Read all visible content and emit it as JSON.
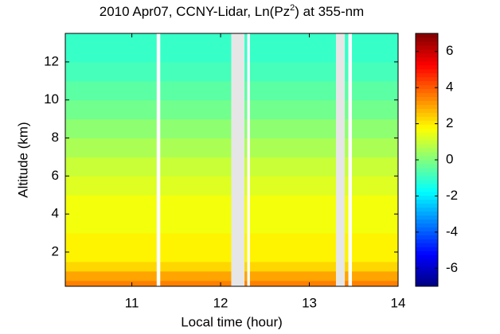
{
  "chart_data": {
    "type": "heatmap",
    "title_prefix": "2010 Apr07, CCNY-Lidar, Ln(Pz",
    "title_sup": "2",
    "title_suffix": ") at 355-nm",
    "xlabel": "Local time (hour)",
    "ylabel": "Altitude (km)",
    "xlim": [
      10.25,
      14.0
    ],
    "xticks": [
      11,
      12,
      13,
      14
    ],
    "ylim": [
      0.2,
      13.5
    ],
    "yticks": [
      2,
      4,
      6,
      8,
      10,
      12
    ],
    "altitude_bins": [
      0.2,
      0.5,
      1.0,
      1.5,
      3.0,
      5.0,
      6.0,
      7.0,
      8.0,
      9.0,
      10.0,
      11.0,
      12.0,
      13.5
    ],
    "values": [
      3.5,
      3.0,
      2.3,
      1.9,
      1.6,
      1.3,
      1.0,
      0.6,
      0.2,
      -0.2,
      -0.5,
      -0.8,
      -1.0
    ],
    "gaps": [
      {
        "x": [
          11.28,
          11.32
        ],
        "color": "#ffffff"
      },
      {
        "x": [
          12.12,
          12.27
        ],
        "color": "#e6e6e6"
      },
      {
        "x": [
          12.3,
          12.33
        ],
        "color": "#ffffff"
      },
      {
        "x": [
          13.3,
          13.4
        ],
        "color": "#e6e6e6"
      },
      {
        "x": [
          13.44,
          13.48
        ],
        "color": "#ffffff"
      }
    ],
    "colormap": "jet",
    "clim": [
      -7,
      7
    ],
    "cticks": [
      -6,
      -4,
      -2,
      0,
      2,
      4,
      6
    ]
  }
}
